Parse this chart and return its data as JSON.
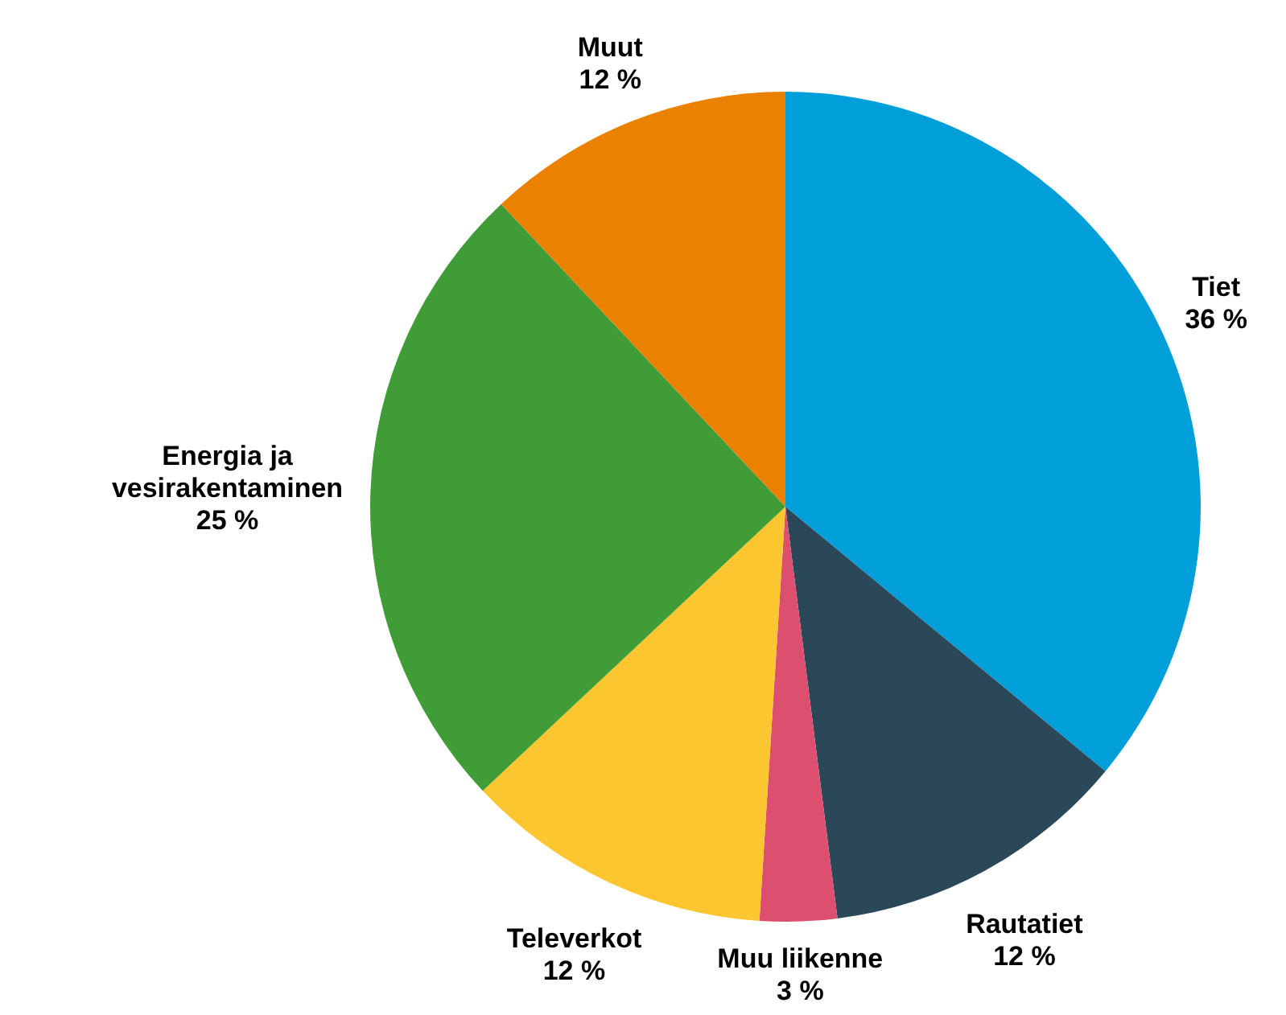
{
  "chart_data": {
    "type": "pie",
    "categories": [
      "Tiet",
      "Rautatiet",
      "Muu liikenne",
      "Televerkot",
      "Energia ja vesirakentaminen",
      "Muut"
    ],
    "values": [
      36,
      12,
      3,
      12,
      25,
      12
    ],
    "colors": [
      "#009fda",
      "#2a4858",
      "#dc4f6e",
      "#fcc630",
      "#409c36",
      "#eb8100"
    ],
    "value_labels": [
      "36 %",
      "12 %",
      "3 %",
      "12 %",
      "25 %",
      "12 %"
    ],
    "legend": false
  }
}
